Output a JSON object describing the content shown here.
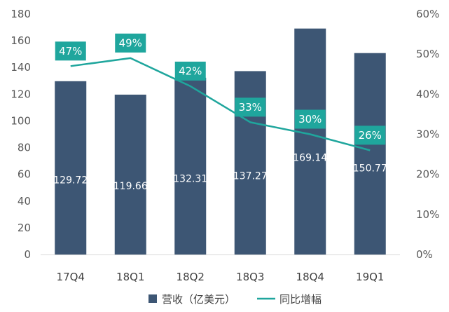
{
  "chart_data": {
    "type": "bar",
    "categories": [
      "17Q4",
      "18Q1",
      "18Q2",
      "18Q3",
      "18Q4",
      "19Q1"
    ],
    "series": [
      {
        "name": "营收（亿美元）",
        "type": "bar",
        "axis": "left",
        "values": [
          129.72,
          119.66,
          132.31,
          137.27,
          169.14,
          150.77
        ],
        "labels": [
          "129.72",
          "119.66",
          "132.31",
          "137.27",
          "169.14",
          "150.77"
        ]
      },
      {
        "name": "同比增幅",
        "type": "line",
        "axis": "right",
        "values": [
          47,
          49,
          42,
          33,
          30,
          26
        ],
        "labels": [
          "47%",
          "49%",
          "42%",
          "33%",
          "30%",
          "26%"
        ]
      }
    ],
    "y_left": {
      "min": 0,
      "max": 180,
      "step": 20,
      "ticks": [
        "0",
        "20",
        "40",
        "60",
        "80",
        "100",
        "120",
        "140",
        "160",
        "180"
      ]
    },
    "y_right": {
      "min": 0,
      "max": 60,
      "step": 10,
      "ticks": [
        "0%",
        "10%",
        "20%",
        "30%",
        "40%",
        "50%",
        "60%"
      ]
    },
    "grid": false,
    "legend_position": "bottom",
    "colors": {
      "bar": "#3d5674",
      "line": "#1fa69d",
      "label_box": "#1fa69d"
    }
  }
}
